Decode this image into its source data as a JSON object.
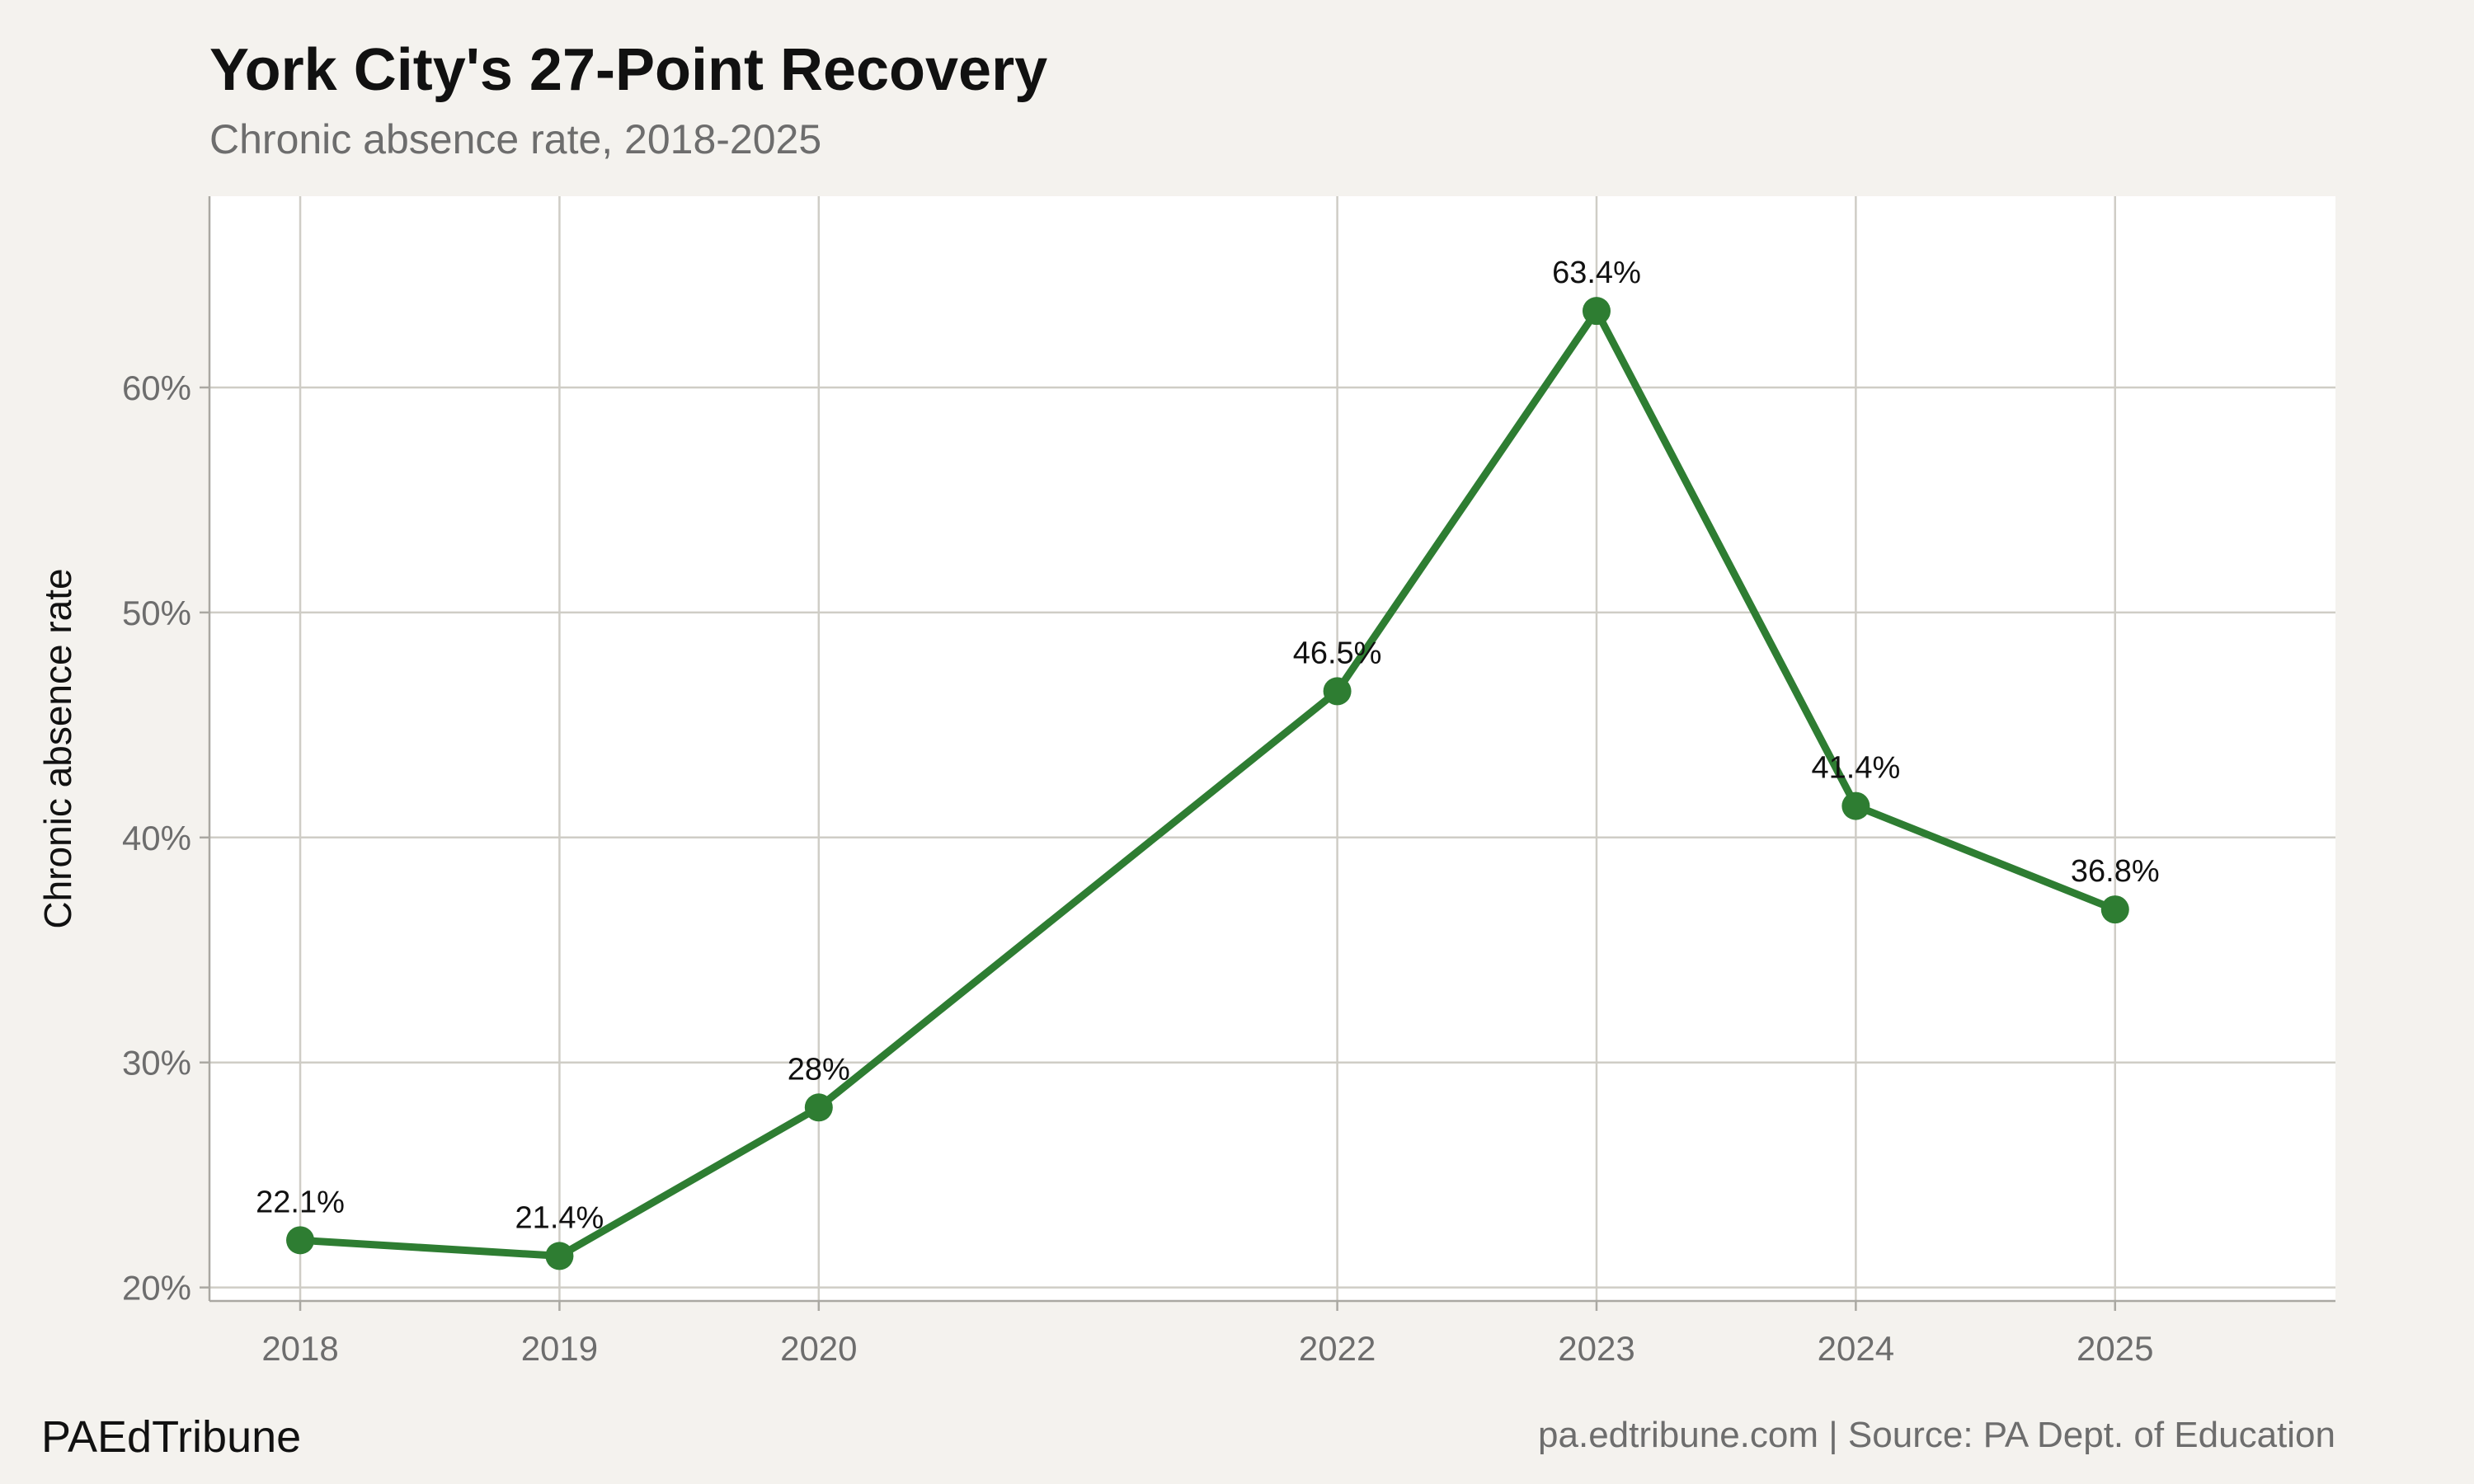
{
  "header": {
    "title": "York City's 27-Point Recovery",
    "subtitle": "Chronic absence rate, 2018-2025"
  },
  "footer": {
    "brand": "PAEdTribune",
    "source": "pa.edtribune.com | Source: PA Dept. of Education"
  },
  "colors": {
    "line": "#2e7d32",
    "background": "#f4f2ee",
    "panel": "#ffffff",
    "grid": "#cfcdc6",
    "tick_text": "#6d6d6d",
    "label_text": "#111111"
  },
  "chart_data": {
    "type": "line",
    "title": "York City's 27-Point Recovery",
    "subtitle": "Chronic absence rate, 2018-2025",
    "xlabel": "",
    "ylabel": "Chronic absence rate",
    "x": [
      2018,
      2019,
      2020,
      2022,
      2023,
      2024,
      2025
    ],
    "series": [
      {
        "values": [
          22.1,
          21.4,
          28,
          46.5,
          63.4,
          41.4,
          36.8
        ],
        "labels": [
          "22.1%",
          "21.4%",
          "28%",
          "46.5%",
          "63.4%",
          "41.4%",
          "36.8%"
        ]
      }
    ],
    "xlim": [
      2017.65,
      2025.85
    ],
    "ylim": [
      19.4,
      68.5
    ],
    "yticks": [
      20,
      30,
      40,
      50,
      60
    ],
    "ytick_labels": [
      "20%",
      "30%",
      "40%",
      "50%",
      "60%"
    ],
    "xticks": [
      2018,
      2019,
      2020,
      2022,
      2023,
      2024,
      2025
    ],
    "xtick_labels": [
      "2018",
      "2019",
      "2020",
      "2022",
      "2023",
      "2024",
      "2025"
    ],
    "grid": true,
    "legend": "none"
  }
}
